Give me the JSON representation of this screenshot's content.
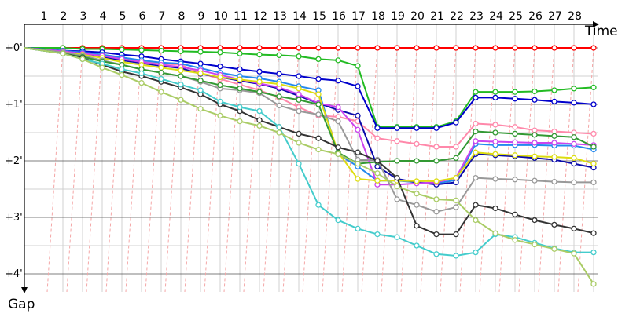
{
  "chart_data": {
    "type": "line",
    "title": "",
    "xlabel": "Time",
    "ylabel": "Gap",
    "x_ticks": [
      "1",
      "2",
      "3",
      "4",
      "5",
      "6",
      "7",
      "8",
      "9",
      "10",
      "11",
      "12",
      "13",
      "14",
      "15",
      "16",
      "17",
      "18",
      "19",
      "20",
      "21",
      "22",
      "23",
      "24",
      "25",
      "26",
      "27",
      "28"
    ],
    "y_ticks": [
      "+0'",
      "+1'",
      "+2'",
      "+3'",
      "+4'"
    ],
    "ylim_minutes": [
      0,
      4.4
    ],
    "y_direction": "down",
    "grid": true,
    "legend": "none",
    "pit_lines_color": "#f4a6a6",
    "series": [
      {
        "color": "#ff0000",
        "values": [
          0,
          0,
          0,
          0,
          0,
          0,
          0,
          0,
          0,
          0,
          0,
          0,
          0,
          0,
          0,
          0,
          0,
          0,
          0,
          0,
          0,
          0,
          0,
          0,
          0,
          0,
          0,
          0
        ]
      },
      {
        "color": "#22bb22",
        "values": [
          0,
          0.02,
          0.02,
          0.03,
          0.04,
          0.05,
          0.06,
          0.07,
          0.08,
          0.1,
          0.12,
          0.13,
          0.15,
          0.2,
          0.22,
          0.32,
          1.4,
          1.4,
          1.4,
          1.4,
          1.3,
          0.78,
          0.78,
          0.78,
          0.77,
          0.75,
          0.72,
          0.7
        ]
      },
      {
        "color": "#0000cc",
        "values": [
          0.05,
          0.06,
          0.08,
          0.12,
          0.15,
          0.2,
          0.24,
          0.28,
          0.33,
          0.38,
          0.42,
          0.46,
          0.5,
          0.55,
          0.58,
          0.68,
          1.42,
          1.42,
          1.42,
          1.42,
          1.32,
          0.88,
          0.88,
          0.9,
          0.92,
          0.95,
          0.97,
          1.0
        ]
      },
      {
        "color": "#ff88aa",
        "values": [
          0.07,
          0.1,
          0.14,
          0.19,
          0.24,
          0.28,
          0.3,
          0.45,
          0.55,
          0.65,
          0.75,
          0.88,
          1.05,
          1.2,
          1.22,
          1.3,
          1.6,
          1.65,
          1.7,
          1.75,
          1.75,
          1.34,
          1.36,
          1.4,
          1.46,
          1.48,
          1.5,
          1.52
        ]
      },
      {
        "color": "#2288ee",
        "values": [
          0.05,
          0.08,
          0.12,
          0.17,
          0.22,
          0.26,
          0.28,
          0.36,
          0.44,
          0.5,
          0.54,
          0.6,
          0.68,
          0.75,
          1.88,
          2.1,
          2.35,
          2.35,
          2.38,
          2.4,
          2.34,
          1.7,
          1.72,
          1.72,
          1.72,
          1.73,
          1.73,
          1.8
        ]
      },
      {
        "color": "#0a0aaa",
        "values": [
          0.06,
          0.1,
          0.16,
          0.22,
          0.27,
          0.32,
          0.36,
          0.46,
          0.52,
          0.58,
          0.64,
          0.72,
          0.85,
          0.98,
          1.1,
          1.2,
          2.1,
          2.32,
          2.38,
          2.42,
          2.38,
          1.88,
          1.9,
          1.92,
          1.95,
          1.98,
          2.05,
          2.12
        ]
      },
      {
        "color": "#cc44ee",
        "values": [
          0.06,
          0.1,
          0.14,
          0.2,
          0.25,
          0.3,
          0.34,
          0.4,
          0.48,
          0.56,
          0.63,
          0.7,
          0.82,
          0.98,
          1.05,
          1.45,
          2.42,
          2.42,
          2.4,
          2.38,
          2.3,
          1.65,
          1.66,
          1.67,
          1.68,
          1.68,
          1.7,
          1.72
        ]
      },
      {
        "color": "#dddd11",
        "values": [
          0.08,
          0.12,
          0.18,
          0.25,
          0.3,
          0.35,
          0.4,
          0.45,
          0.52,
          0.56,
          0.6,
          0.64,
          0.72,
          0.82,
          1.85,
          2.32,
          2.35,
          2.35,
          2.36,
          2.36,
          2.3,
          1.85,
          1.88,
          1.9,
          1.92,
          1.93,
          1.95,
          2.05
        ]
      },
      {
        "color": "#999999",
        "values": [
          0.08,
          0.14,
          0.22,
          0.3,
          0.38,
          0.44,
          0.5,
          0.6,
          0.72,
          0.75,
          0.8,
          1.02,
          1.12,
          1.18,
          1.3,
          1.98,
          1.98,
          2.68,
          2.78,
          2.9,
          2.82,
          2.3,
          2.32,
          2.33,
          2.35,
          2.37,
          2.38,
          2.38
        ]
      },
      {
        "color": "#339933",
        "values": [
          0.1,
          0.16,
          0.24,
          0.3,
          0.38,
          0.44,
          0.5,
          0.58,
          0.66,
          0.72,
          0.78,
          0.86,
          0.92,
          1.0,
          1.85,
          2.05,
          2.02,
          2.0,
          2.0,
          2.0,
          1.95,
          1.48,
          1.5,
          1.52,
          1.54,
          1.56,
          1.58,
          1.75
        ]
      },
      {
        "color": "#333333",
        "values": [
          0.1,
          0.18,
          0.3,
          0.42,
          0.5,
          0.6,
          0.7,
          0.82,
          1.0,
          1.12,
          1.28,
          1.4,
          1.52,
          1.6,
          1.76,
          1.85,
          2.0,
          2.3,
          3.15,
          3.3,
          3.3,
          2.78,
          2.84,
          2.95,
          3.05,
          3.13,
          3.2,
          3.28
        ]
      },
      {
        "color": "#44cccc",
        "values": [
          0.1,
          0.2,
          0.28,
          0.38,
          0.45,
          0.55,
          0.65,
          0.75,
          0.95,
          1.05,
          1.12,
          1.4,
          2.05,
          2.78,
          3.05,
          3.2,
          3.3,
          3.35,
          3.5,
          3.65,
          3.68,
          3.62,
          3.3,
          3.35,
          3.45,
          3.55,
          3.62,
          3.62
        ]
      },
      {
        "color": "#aacc66",
        "values": [
          0.1,
          0.2,
          0.35,
          0.48,
          0.62,
          0.78,
          0.92,
          1.08,
          1.2,
          1.3,
          1.38,
          1.5,
          1.68,
          1.8,
          1.88,
          2.05,
          2.22,
          2.45,
          2.58,
          2.68,
          2.7,
          3.05,
          3.28,
          3.4,
          3.48,
          3.56,
          3.64,
          4.18
        ]
      }
    ]
  }
}
